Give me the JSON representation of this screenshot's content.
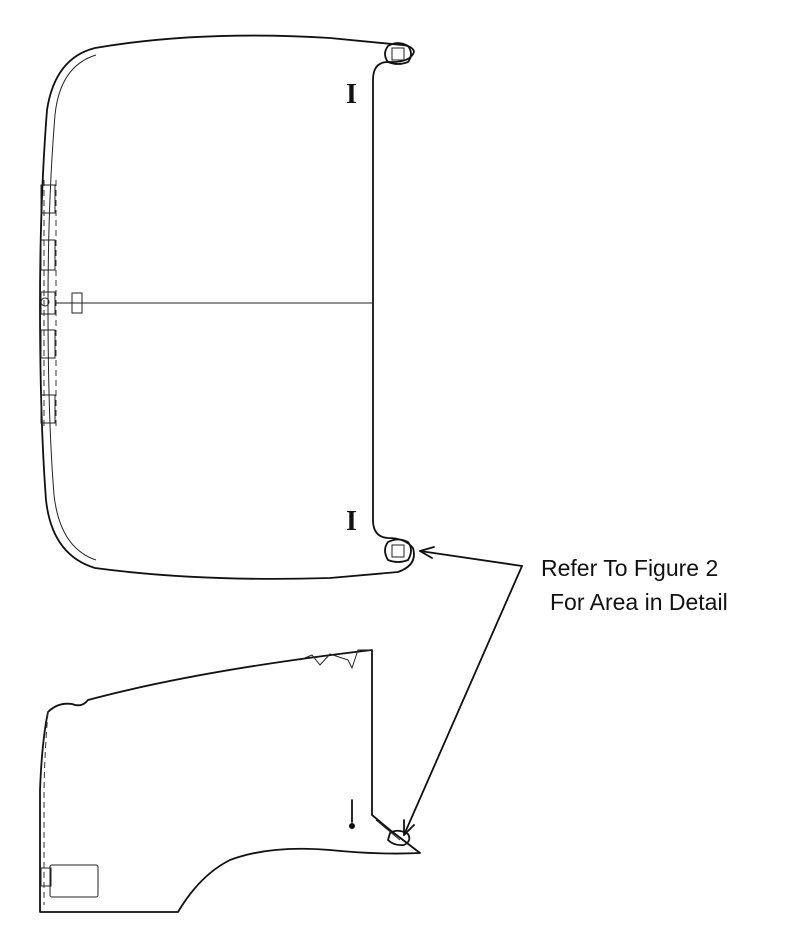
{
  "diagram": {
    "section_marks": [
      "I",
      "I"
    ],
    "callout": {
      "lines": [
        "Refer To Figure 2",
        "For Area in Detail"
      ]
    },
    "colors": {
      "line": "#111111",
      "background": "#ffffff"
    }
  }
}
